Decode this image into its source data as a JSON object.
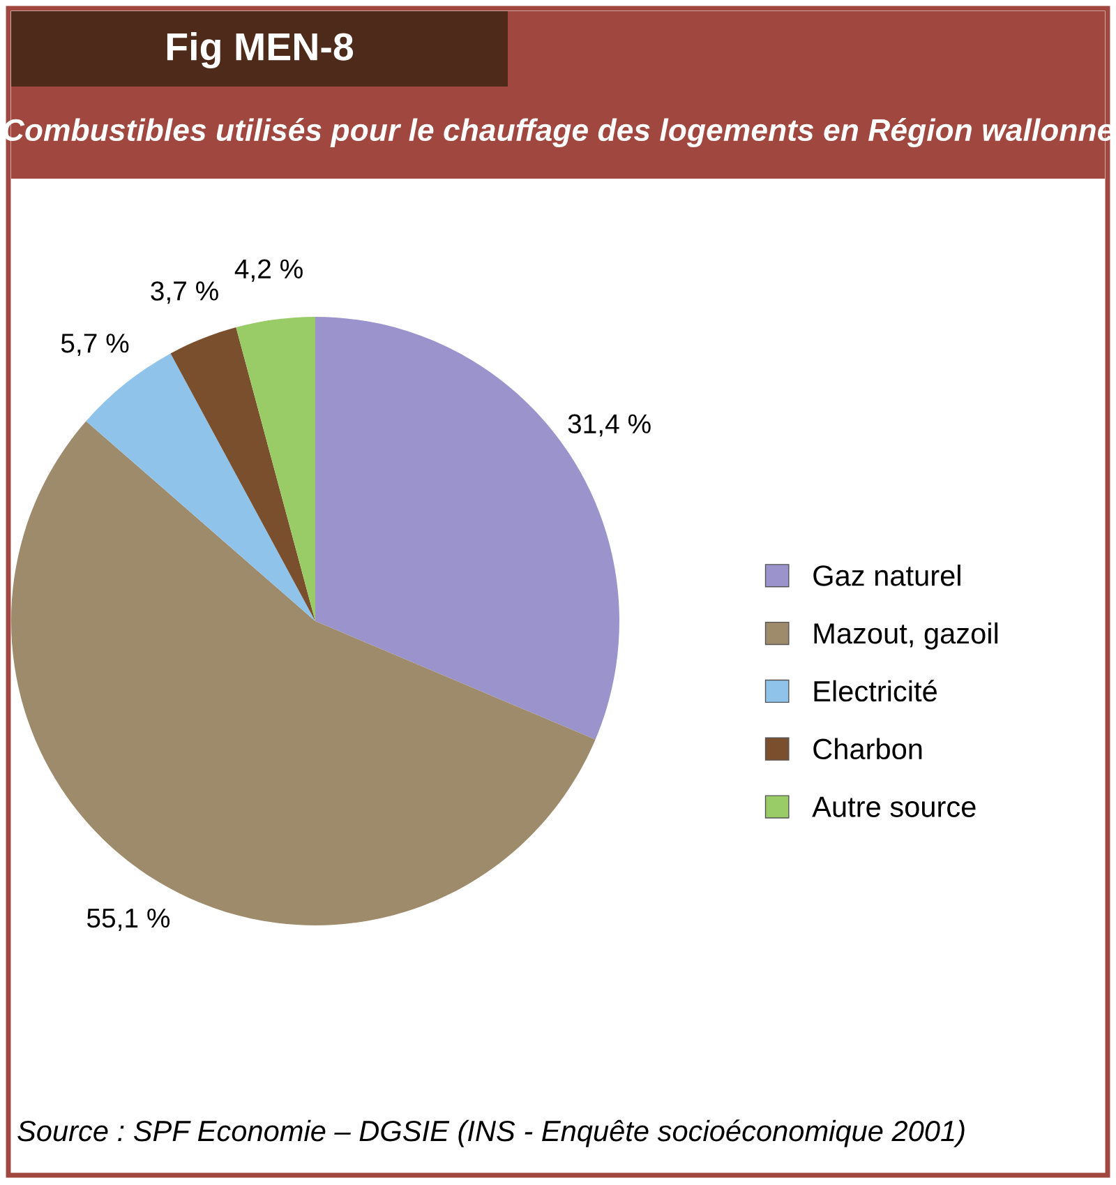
{
  "chart_data": {
    "type": "pie",
    "title": "Combustibles utilisés pour le chauffage des logements en Région wallonne",
    "categories": [
      "Gaz naturel",
      "Mazout, gazoil",
      "Electricité",
      "Charbon",
      "Autre source"
    ],
    "values": [
      31.4,
      55.1,
      5.7,
      3.7,
      4.2
    ],
    "colors": [
      "#9b93cb",
      "#9e8b6c",
      "#8fc3ea",
      "#7a4f2e",
      "#99cc66"
    ],
    "value_labels": [
      "31,4 %",
      "55,1 %",
      "5,7 %",
      "3,7 %",
      "4,2 %"
    ],
    "legend": "right",
    "annotations": [
      "Fig MEN-8",
      "Source : SPF Economie – DGSIE (INS - Enquête socioéconomique 2001)"
    ]
  }
}
